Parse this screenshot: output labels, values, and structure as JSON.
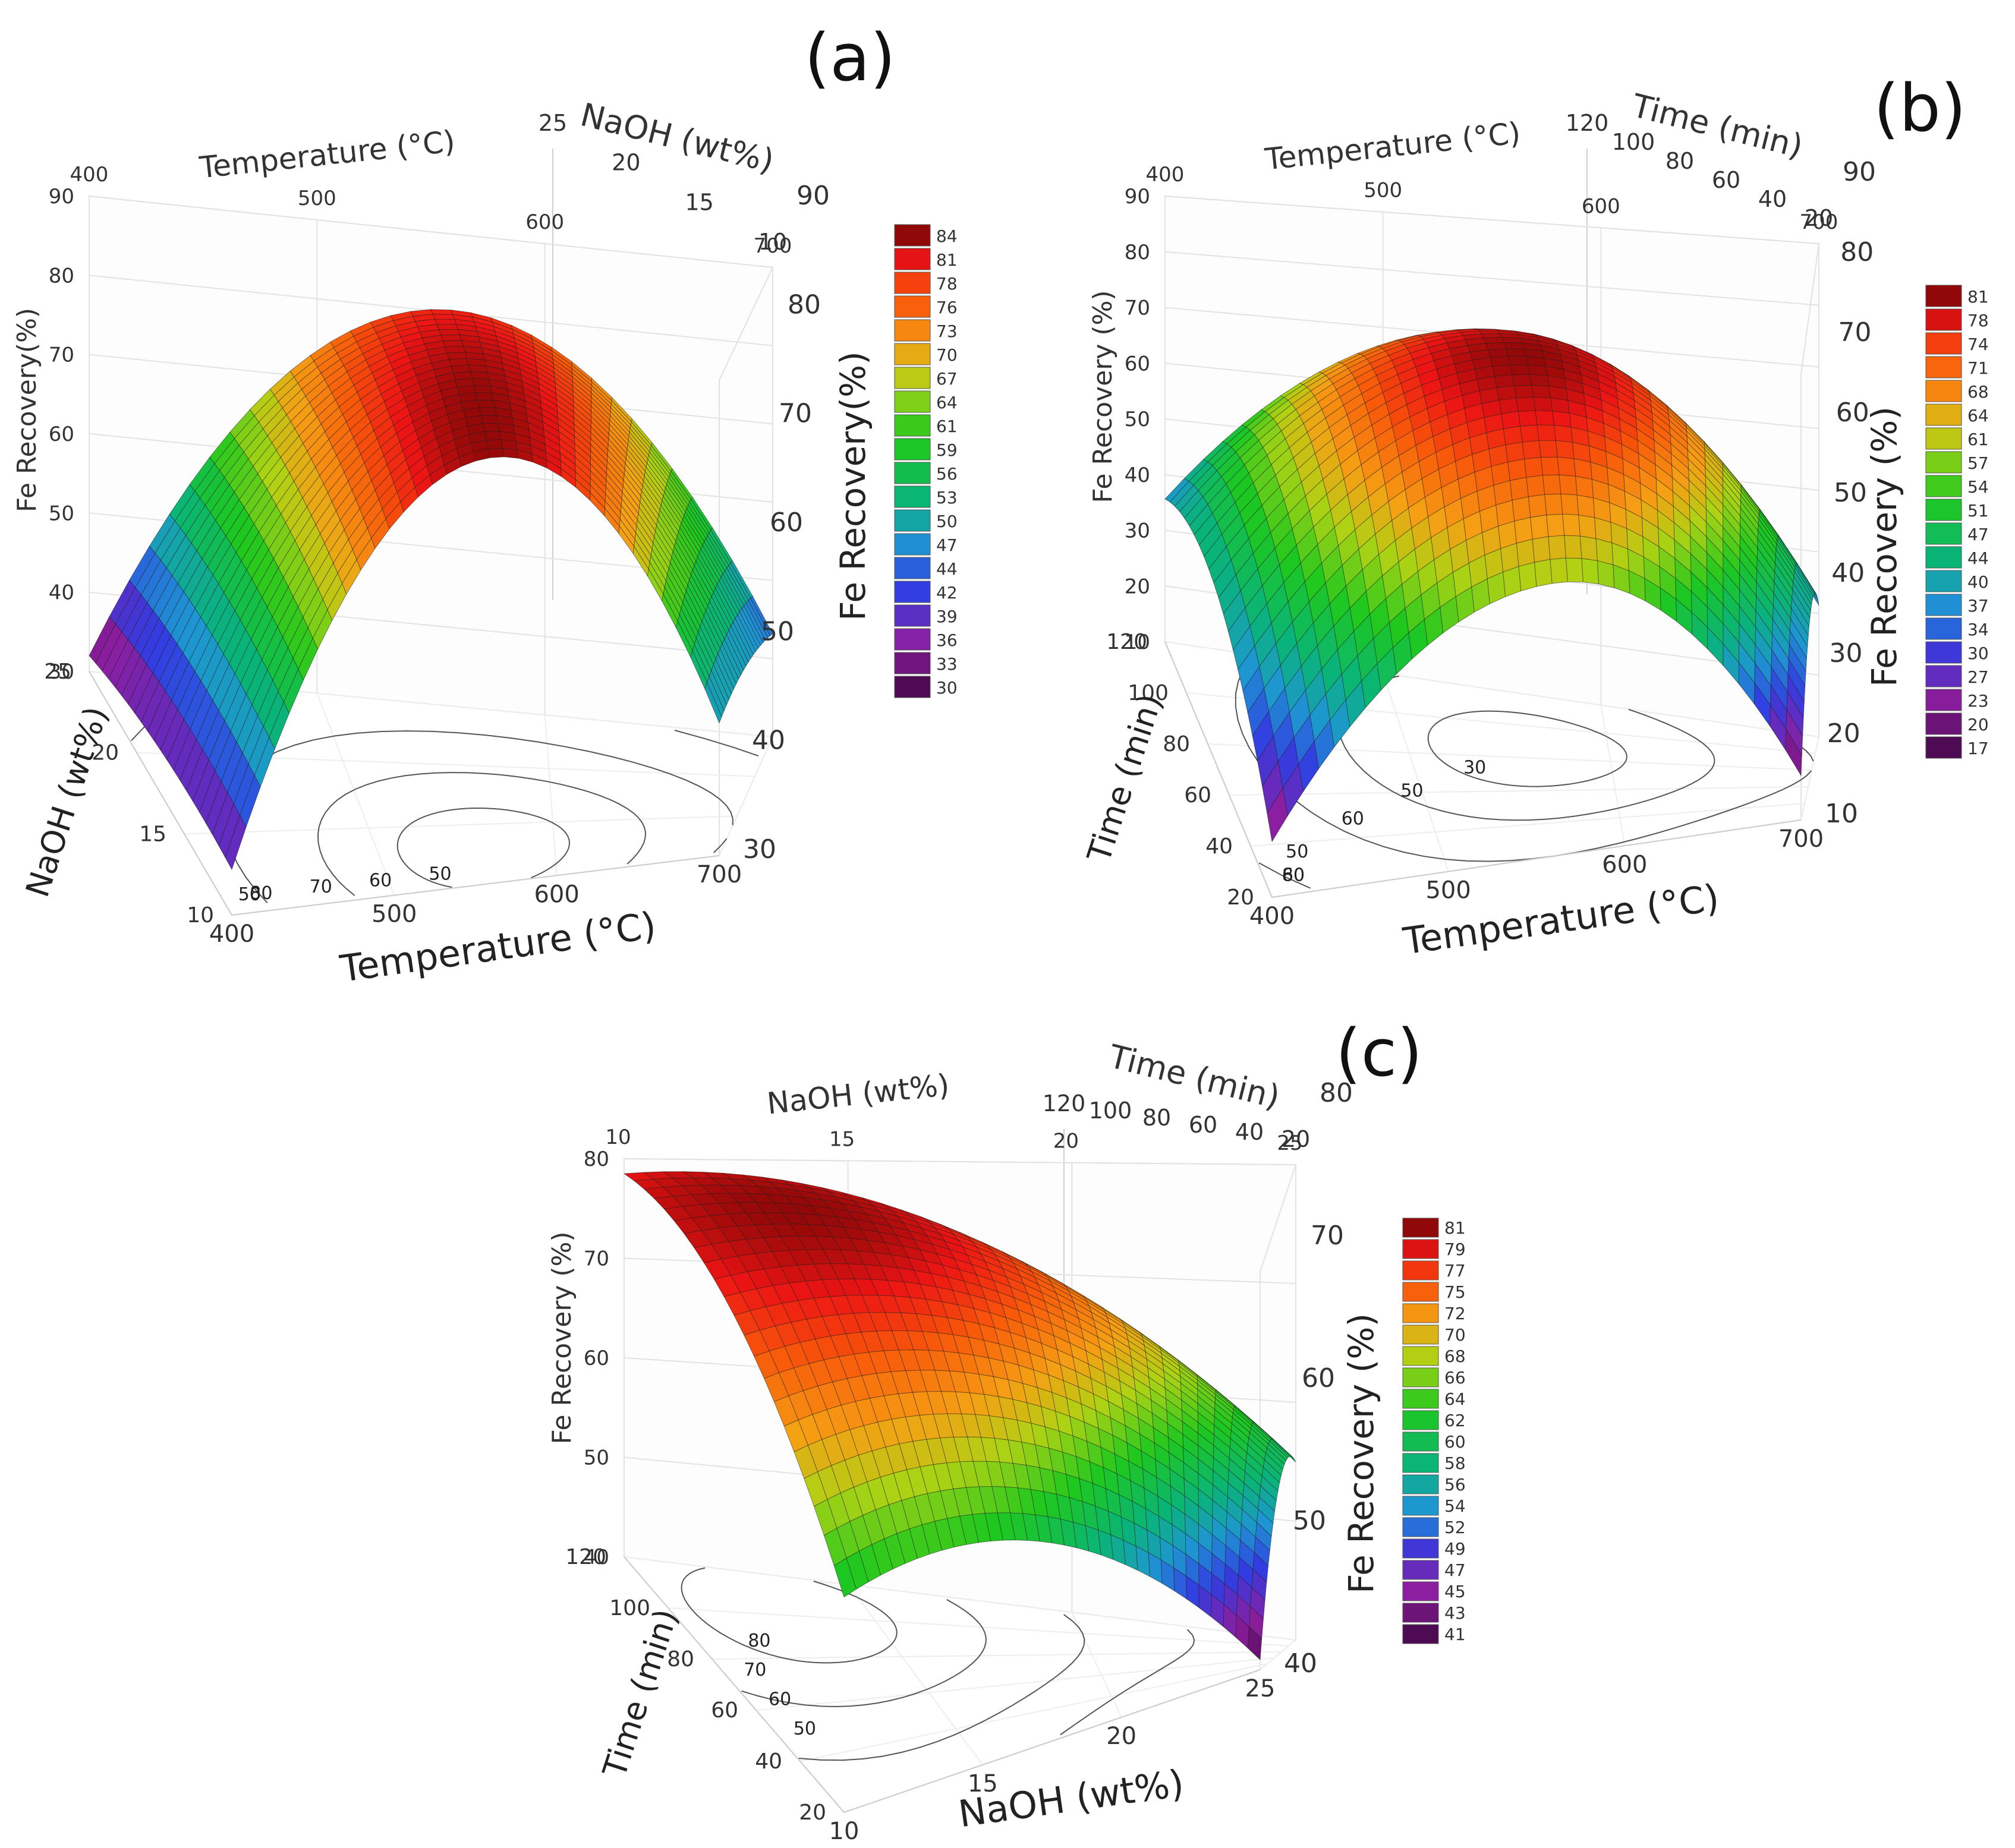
{
  "chart_data": [
    {
      "type": "surface3d",
      "panel_label": "(a)",
      "x_name": "Temperature (°C)",
      "y_name": "NaOH (wt%)",
      "z_name": "Fe Recovery(%)",
      "z_name_left": "Fe Recovery(%)",
      "z_name_right": "Fe Recovery(%)",
      "x_range": [
        400,
        700
      ],
      "y_range": [
        10,
        25
      ],
      "zlim": [
        30,
        90
      ],
      "x_ticks": [
        "400",
        "500",
        "600",
        "700"
      ],
      "y_ticks_top": [
        "25",
        "20",
        "15",
        "10"
      ],
      "y_ticks_bottom": [
        "10",
        "15",
        "20",
        "25"
      ],
      "x_ticks_bottom": [
        "400",
        "500",
        "600",
        "700"
      ],
      "z_ticks_left": [
        "30",
        "40",
        "50",
        "60",
        "70",
        "80",
        "90"
      ],
      "z_ticks_right": [
        "30",
        "40",
        "50",
        "60",
        "70",
        "80",
        "90"
      ],
      "colorbar": [
        "84",
        "81",
        "78",
        "76",
        "73",
        "70",
        "67",
        "64",
        "61",
        "59",
        "56",
        "53",
        "50",
        "47",
        "44",
        "42",
        "39",
        "36",
        "33",
        "30"
      ],
      "contour_labels": [
        "50",
        "60",
        "70",
        "80",
        "50"
      ],
      "model": {
        "peak_x": 560,
        "peak_y": 13,
        "peak_z": 84,
        "x_at_400": 36,
        "x_at_700": 47,
        "y_drop_at_25": 4
      }
    },
    {
      "type": "surface3d",
      "panel_label": "(b)",
      "x_name": "Temperature (°C)",
      "y_name": "Time (min)",
      "z_name": "Fe Recovery (%)",
      "z_name_left": "Fe Recovery (%)",
      "z_name_right": "Fe Recovery (%)",
      "x_range": [
        400,
        700
      ],
      "y_range": [
        20,
        120
      ],
      "zlim": [
        10,
        90
      ],
      "x_ticks": [
        "400",
        "500",
        "600",
        "700"
      ],
      "y_ticks_top": [
        "120",
        "100",
        "80",
        "60",
        "40",
        "20"
      ],
      "y_ticks_bottom": [
        "20",
        "40",
        "60",
        "80",
        "100",
        "120"
      ],
      "x_ticks_bottom": [
        "400",
        "500",
        "600",
        "700"
      ],
      "z_ticks_left": [
        "10",
        "20",
        "30",
        "40",
        "50",
        "60",
        "70",
        "80",
        "90"
      ],
      "z_ticks_right": [
        "10",
        "20",
        "30",
        "40",
        "50",
        "60",
        "70",
        "80",
        "90"
      ],
      "colorbar": [
        "81",
        "78",
        "74",
        "71",
        "68",
        "64",
        "61",
        "57",
        "54",
        "51",
        "47",
        "44",
        "40",
        "37",
        "34",
        "30",
        "27",
        "23",
        "20",
        "17"
      ],
      "contour_labels": [
        "30",
        "50",
        "60",
        "50",
        "60",
        "80"
      ],
      "model": {
        "peak_x": 560,
        "peak_y": 85,
        "peak_z": 81,
        "x_at_400": 42,
        "x_at_700": 40,
        "y_drop_at_20": 22
      }
    },
    {
      "type": "surface3d",
      "panel_label": "(c)",
      "x_name": "NaOH (wt%)",
      "y_name": "Time (min)",
      "z_name": "Fe Recovery (%)",
      "z_name_left": "Fe Recovery (%)",
      "z_name_right": "Fe Recovery (%)",
      "x_range": [
        10,
        25
      ],
      "y_range": [
        20,
        120
      ],
      "zlim": [
        40,
        80
      ],
      "x_ticks": [
        "10",
        "15",
        "20",
        "25"
      ],
      "y_ticks_top": [
        "120",
        "100",
        "80",
        "60",
        "40",
        "20"
      ],
      "y_ticks_bottom": [
        "20",
        "40",
        "60",
        "80",
        "100",
        "120"
      ],
      "x_ticks_bottom": [
        "10",
        "15",
        "20",
        "25"
      ],
      "z_ticks_left": [
        "40",
        "50",
        "60",
        "70",
        "80"
      ],
      "z_ticks_right": [
        "40",
        "50",
        "60",
        "70",
        "80"
      ],
      "colorbar": [
        "81",
        "79",
        "77",
        "75",
        "72",
        "70",
        "68",
        "66",
        "64",
        "62",
        "60",
        "58",
        "56",
        "54",
        "52",
        "49",
        "47",
        "45",
        "43",
        "41"
      ],
      "contour_labels": [
        "80",
        "70",
        "60",
        "50"
      ],
      "model": {
        "peak_x": 13,
        "peak_y": 100,
        "peak_z": 81,
        "x_at_25_y_20": 41,
        "y_drop_at_20": 18
      }
    }
  ]
}
